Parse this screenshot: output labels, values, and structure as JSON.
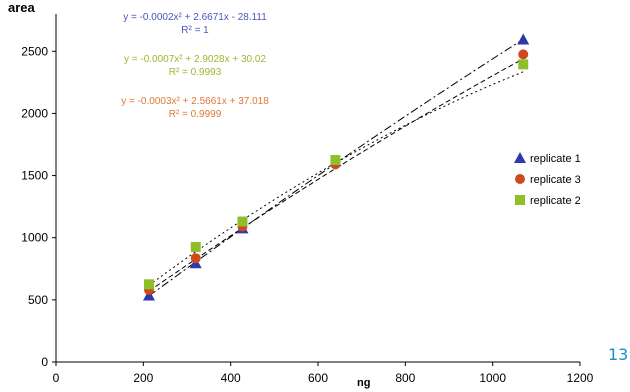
{
  "chart_data": {
    "type": "scatter",
    "xlabel": "ng",
    "ylabel": "area",
    "xlim": [
      0,
      1200
    ],
    "ylim": [
      0,
      2800
    ],
    "x_ticks": [
      0,
      200,
      400,
      600,
      800,
      1000,
      1200
    ],
    "y_ticks": [
      0,
      500,
      1000,
      1500,
      2000,
      2500
    ],
    "grid": false,
    "legend_position": "right",
    "series": [
      {
        "name": "replicate 1",
        "marker": "triangle",
        "color": "#2b3aa8",
        "x": [
          213,
          320,
          427,
          640,
          1070
        ],
        "y": [
          535,
          795,
          1075,
          1615,
          2595
        ],
        "trendline": {
          "a": -0.0002,
          "b": 2.6671,
          "c": -28.111,
          "dash": "8,3,2,3"
        },
        "equation": "y = -0.0002x² + 2.6671x - 28.111",
        "r2": "R² = 1",
        "label_color": "#4a55c0"
      },
      {
        "name": "replicate 3",
        "marker": "circle",
        "color": "#cc4a1e",
        "x": [
          213,
          320,
          427,
          640,
          1070
        ],
        "y": [
          580,
          835,
          1090,
          1590,
          2475
        ],
        "trendline": {
          "a": -0.0003,
          "b": 2.5661,
          "c": 37.018,
          "dash": "5,3"
        },
        "equation": "y = -0.0003x² + 2.5661x + 37.018",
        "r2": "R² = 0.9999",
        "label_color": "#e07838"
      },
      {
        "name": "replicate 2",
        "marker": "square",
        "color": "#8ebf2a",
        "x": [
          213,
          320,
          427,
          640,
          1070
        ],
        "y": [
          625,
          925,
          1130,
          1625,
          2395
        ],
        "trendline": {
          "a": -0.0007,
          "b": 2.9028,
          "c": 30.02,
          "dash": "2,3"
        },
        "equation": "y = -0.0007x² + 2.9028x + 30.02",
        "r2": "R² = 0.9993",
        "label_color": "#98b830"
      }
    ],
    "legend_order": [
      "replicate 1",
      "replicate 3",
      "replicate 2"
    ],
    "equation_order": [
      "replicate 1",
      "replicate 2",
      "replicate 3"
    ]
  },
  "page_number": "13",
  "page_number_color": "#1a8fc9"
}
